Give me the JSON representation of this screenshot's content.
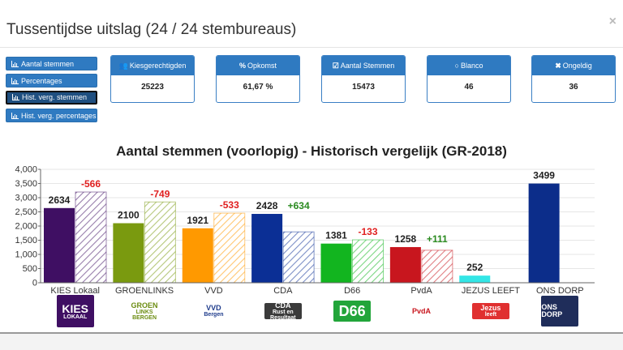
{
  "modal": {
    "title": "Tussentijdse uitslag (24 / 24 stembureaus)",
    "close": "×"
  },
  "sidebar": {
    "buttons": [
      {
        "label": "Aantal stemmen",
        "active": false
      },
      {
        "label": "Percentages",
        "active": false
      },
      {
        "label": "Hist. verg. stemmen",
        "active": true
      },
      {
        "label": "Hist. verg. percentages",
        "active": false
      }
    ]
  },
  "stats": [
    {
      "icon": "users-icon",
      "label": "Kiesgerechtigden",
      "value": "25223",
      "symbol": "👥"
    },
    {
      "icon": "percent-icon",
      "label": "Opkomst",
      "value": "61,67 %",
      "symbol": "%"
    },
    {
      "icon": "check-square-icon",
      "label": "Aantal Stemmen",
      "value": "15473",
      "symbol": "☑"
    },
    {
      "icon": "circle-icon",
      "label": "Blanco",
      "value": "46",
      "symbol": "○"
    },
    {
      "icon": "times-icon",
      "label": "Ongeldig",
      "value": "36",
      "symbol": "✖"
    }
  ],
  "chart_data": {
    "type": "bar",
    "title": "Aantal stemmen (voorlopig) - Historisch vergelijk (GR-2018)",
    "categories": [
      "KIES Lokaal",
      "GROENLINKS",
      "VVD",
      "CDA",
      "D66",
      "PvdA",
      "JEZUS LEEFT",
      "ONS DORP"
    ],
    "values": [
      2634,
      2100,
      1921,
      2428,
      1381,
      1258,
      252,
      3499
    ],
    "previous": [
      3200,
      2849,
      2454,
      1794,
      1514,
      1147,
      null,
      null
    ],
    "diff_labels": [
      "-566",
      "-749",
      "-533",
      "+634",
      "-133",
      "+111",
      "",
      ""
    ],
    "colors": [
      "#3f0f63",
      "#7a9a0f",
      "#ff9900",
      "#0b2f95",
      "#12b51f",
      "#c8161e",
      "#33e6e6",
      "#0c2d8a"
    ],
    "y_ticks": [
      "0",
      "500",
      "1,000",
      "1,500",
      "2,000",
      "2,500",
      "3,000",
      "3,500",
      "4,000"
    ],
    "ylim": [
      0,
      4000
    ],
    "grid": true,
    "up_color": "#2a8a1f",
    "down_color": "#e02020"
  },
  "logos": [
    {
      "name": "kies-lokaal-logo",
      "line1": "KIES",
      "line2": "LOKAAL"
    },
    {
      "name": "groenlinks-logo",
      "line1": "GROEN",
      "line2": "LINKS",
      "line3": "BERGEN"
    },
    {
      "name": "vvd-logo",
      "line1": "VVD",
      "line2": "Bergen"
    },
    {
      "name": "cda-logo",
      "line1": "CDA",
      "line2": "Rust en",
      "line3": "Resultaat"
    },
    {
      "name": "d66-logo",
      "line1": "D66"
    },
    {
      "name": "pvda-logo",
      "line1": "PvdA"
    },
    {
      "name": "jezus-leeft-logo",
      "line1": "Jezus",
      "line2": "leeft"
    },
    {
      "name": "ons-dorp-logo",
      "line1": "ONS DORP"
    }
  ]
}
